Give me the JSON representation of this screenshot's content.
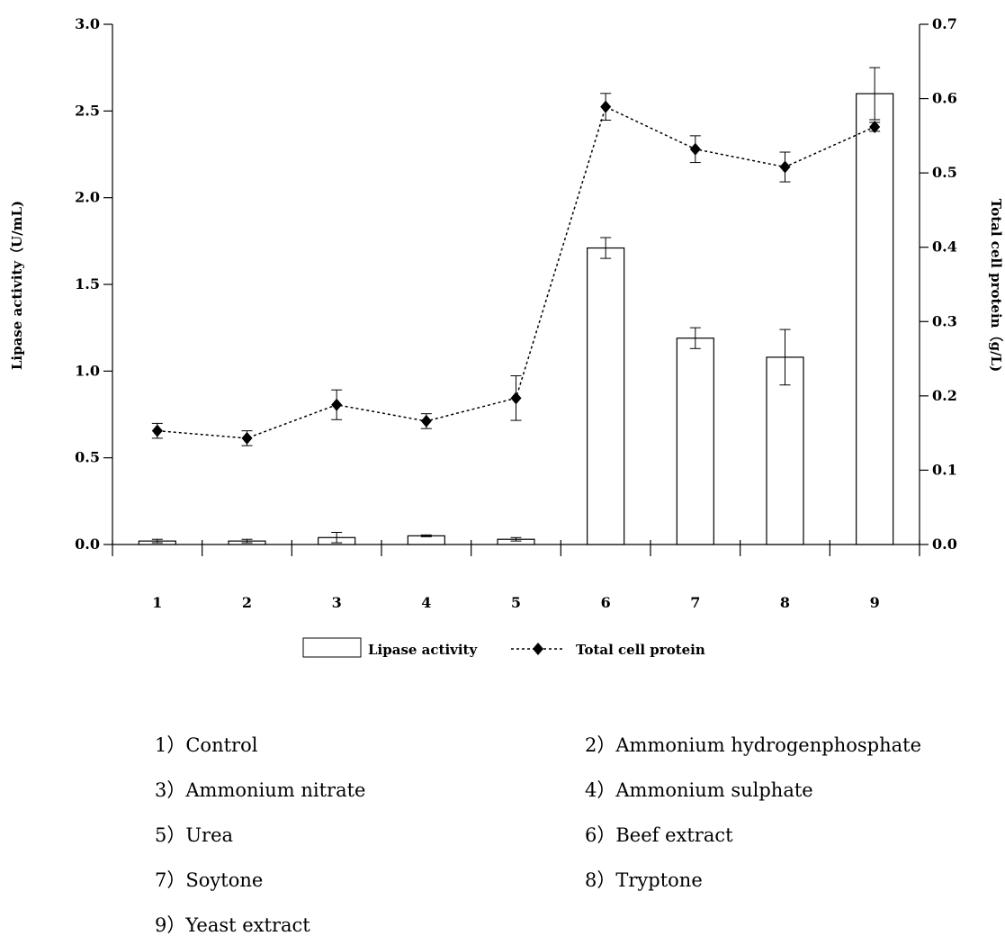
{
  "chart_data": {
    "type": "bar",
    "categories": [
      "1",
      "2",
      "3",
      "4",
      "5",
      "6",
      "7",
      "8",
      "9"
    ],
    "series": [
      {
        "name": "Lipase activity",
        "type": "bar",
        "axis": "left",
        "values": [
          0.02,
          0.02,
          0.04,
          0.05,
          0.03,
          1.71,
          1.19,
          1.08,
          2.6
        ],
        "errors": [
          0.01,
          0.01,
          0.03,
          0.005,
          0.01,
          0.06,
          0.06,
          0.16,
          0.15
        ]
      },
      {
        "name": "Total cell protein",
        "type": "line",
        "axis": "right",
        "values": [
          0.153,
          0.143,
          0.188,
          0.166,
          0.197,
          0.589,
          0.532,
          0.508,
          0.562
        ],
        "errors": [
          0.01,
          0.01,
          0.02,
          0.01,
          0.03,
          0.018,
          0.018,
          0.02,
          0.006
        ]
      }
    ],
    "ylabel": "Lipase activity（U/mL)",
    "y2label": "Total cell protein（g/L)",
    "ylim": [
      0,
      3.0
    ],
    "y2lim": [
      0,
      0.7
    ],
    "yticks": [
      "0.0",
      "0.5",
      "1.0",
      "1.5",
      "2.0",
      "2.5",
      "3.0"
    ],
    "y2ticks": [
      "0.0",
      "0.1",
      "0.2",
      "0.3",
      "0.4",
      "0.5",
      "0.6",
      "0.7"
    ],
    "grid": false,
    "legend_position": "bottom"
  },
  "key_items": [
    "1）Control",
    "2）Ammonium hydrogenphosphate",
    "3）Ammonium nitrate",
    "4）Ammonium sulphate",
    "5）Urea",
    "6）Beef extract",
    "7）Soytone",
    "8）Tryptone",
    "9）Yeast extract"
  ]
}
